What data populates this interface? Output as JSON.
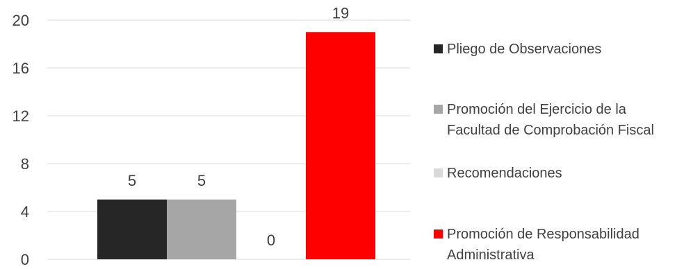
{
  "chart_data": {
    "type": "bar",
    "title": "",
    "xlabel": "",
    "ylabel": "",
    "ylim": [
      0,
      20
    ],
    "yticks": [
      "0",
      "4",
      "8",
      "12",
      "16",
      "20"
    ],
    "grid": true,
    "legend_position": "right",
    "series": [
      {
        "name": "Pliego de Observaciones",
        "legend_lines": [
          "Pliego de Observaciones"
        ],
        "value": 5,
        "label": "5",
        "color": "#262626"
      },
      {
        "name": "Promoción del Ejercicio de la Facultad de Comprobación Fiscal",
        "legend_lines": [
          "Promoción del Ejercicio de la",
          "Facultad de Comprobación Fiscal"
        ],
        "value": 5,
        "label": "5",
        "color": "#a6a6a6"
      },
      {
        "name": "Recomendaciones",
        "legend_lines": [
          "Recomendaciones"
        ],
        "value": 0,
        "label": "0",
        "color": "#d9d9d9"
      },
      {
        "name": "Promoción de Responsabilidad Administrativa",
        "legend_lines": [
          "Promoción de Responsabilidad",
          "Administrativa"
        ],
        "value": 19,
        "label": "19",
        "color": "#ff0000"
      }
    ]
  }
}
